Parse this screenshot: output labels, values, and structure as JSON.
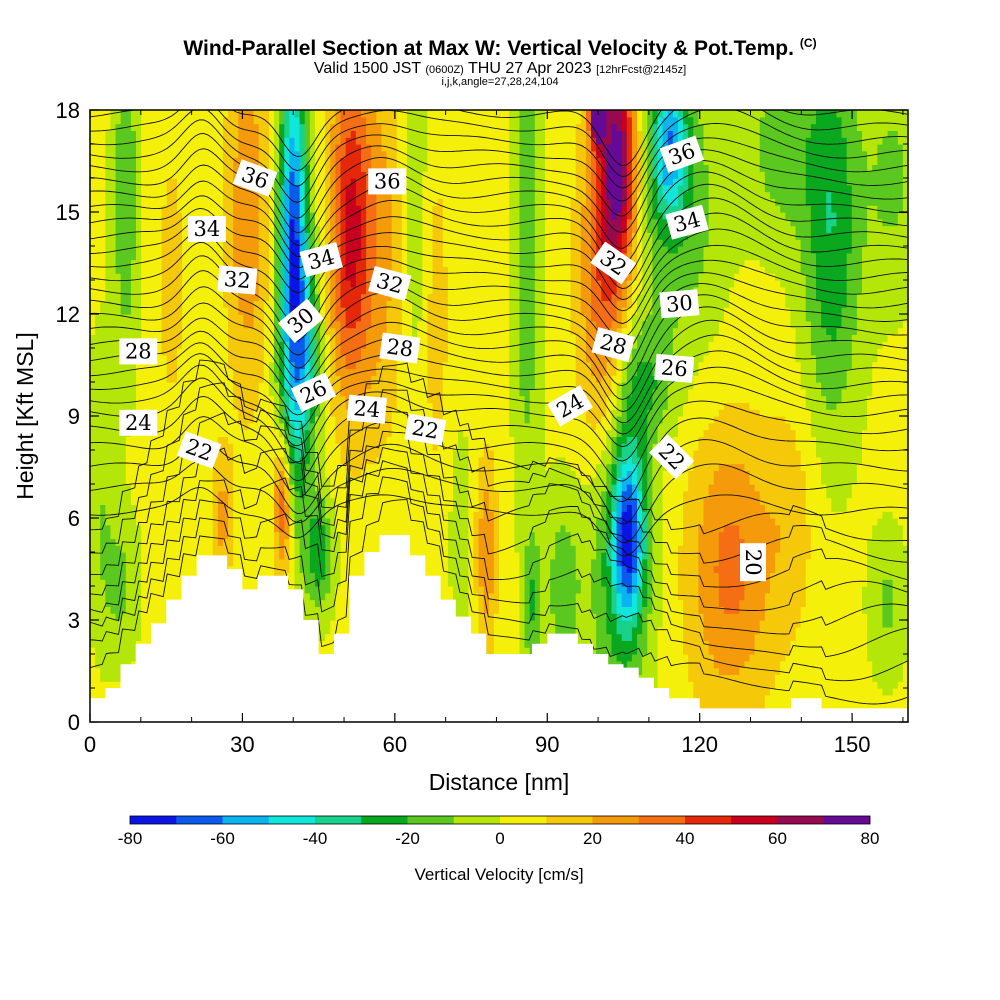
{
  "header": {
    "title": "Wind-Parallel Section at Max W: Vertical Velocity & Pot.Temp.",
    "title_unit": "(C)",
    "subtitle_main": "Valid 1500 JST",
    "subtitle_utc": "(0600Z)",
    "subtitle_date": "THU 27 Apr 2023",
    "subtitle_fcst": "[12hrFcst@2145z]",
    "info": "i,j,k,angle=27,28,24,104"
  },
  "chart_data": {
    "type": "heatmap",
    "xlabel": "Distance [nm]",
    "ylabel": "Height [Kft MSL]",
    "xlim": [
      0,
      161
    ],
    "ylim": [
      0,
      18
    ],
    "xticks": [
      0,
      30,
      60,
      90,
      120,
      150
    ],
    "yticks": [
      0,
      3,
      6,
      9,
      12,
      15,
      18
    ],
    "colorbar": {
      "title": "Vertical Velocity [cm/s]",
      "ticks": [
        -80,
        -60,
        -40,
        -20,
        0,
        20,
        40,
        60,
        80
      ],
      "levels": [
        -80,
        -70,
        -60,
        -50,
        -40,
        -30,
        -20,
        -10,
        0,
        10,
        20,
        30,
        40,
        50,
        60,
        70,
        80
      ],
      "colors": [
        "#0a14e6",
        "#0a5aee",
        "#0ab4f0",
        "#10e6dc",
        "#18d28c",
        "#0aa81e",
        "#5ac81e",
        "#b4e60a",
        "#f5f00a",
        "#f5c80a",
        "#f59a0a",
        "#f56e14",
        "#e6280a",
        "#c8001e",
        "#960a50",
        "#640a96"
      ]
    },
    "terrain": {
      "x": [
        0,
        3,
        6,
        9,
        12,
        15,
        18,
        21,
        24,
        27,
        30,
        33,
        36,
        39,
        42,
        45,
        48,
        51,
        54,
        57,
        60,
        63,
        66,
        69,
        72,
        75,
        78,
        81,
        84,
        87,
        90,
        93,
        96,
        99,
        102,
        105,
        108,
        111,
        114,
        117,
        120,
        123,
        126,
        129,
        132,
        135,
        138,
        141,
        144,
        147,
        150,
        153,
        156,
        159,
        161
      ],
      "height": [
        0.7,
        1.0,
        1.7,
        2.3,
        2.9,
        3.6,
        4.3,
        4.9,
        4.9,
        4.5,
        3.9,
        4.3,
        4.3,
        3.9,
        3.0,
        2.0,
        2.6,
        4.3,
        5.0,
        5.5,
        5.5,
        4.9,
        4.3,
        3.6,
        3.1,
        2.6,
        2.0,
        2.0,
        2.0,
        2.3,
        2.6,
        2.6,
        2.3,
        2.0,
        1.7,
        1.6,
        1.3,
        1.0,
        0.7,
        0.7,
        0.4,
        0.4,
        0.4,
        0.4,
        0.4,
        0.4,
        0.7,
        0.7,
        0.4,
        0.4,
        0.4,
        0.4,
        0.4,
        0.4,
        0.4
      ]
    },
    "velocity_features": [
      {
        "x": 40,
        "y": 14.0,
        "sx": 2.0,
        "sy": 3.8,
        "v": -75
      },
      {
        "x": 43,
        "y": 11.0,
        "sx": 1.8,
        "sy": 1.8,
        "v": -30
      },
      {
        "x": 51,
        "y": 14.5,
        "sx": 2.8,
        "sy": 3.5,
        "v": 45
      },
      {
        "x": 57,
        "y": 14.0,
        "sx": 4.0,
        "sy": 4.0,
        "v": 20
      },
      {
        "x": 31,
        "y": 15.0,
        "sx": 3.0,
        "sy": 4.0,
        "v": 25
      },
      {
        "x": 38,
        "y": 6.5,
        "sx": 1.3,
        "sy": 1.5,
        "v": 45
      },
      {
        "x": 40,
        "y": 8.0,
        "sx": 2.5,
        "sy": 2.2,
        "v": -18
      },
      {
        "x": 45,
        "y": 5.0,
        "sx": 2.0,
        "sy": 1.2,
        "v": -30
      },
      {
        "x": 26,
        "y": 6.0,
        "sx": 1.5,
        "sy": 1.5,
        "v": 20
      },
      {
        "x": 104,
        "y": 16.5,
        "sx": 2.5,
        "sy": 2.2,
        "v": 62
      },
      {
        "x": 101,
        "y": 13.0,
        "sx": 3.5,
        "sy": 4.0,
        "v": 35
      },
      {
        "x": 100,
        "y": 17.8,
        "sx": 1.0,
        "sy": 0.5,
        "v": 80
      },
      {
        "x": 114,
        "y": 17.0,
        "sx": 2.5,
        "sy": 1.5,
        "v": -50
      },
      {
        "x": 116,
        "y": 15.0,
        "sx": 6.0,
        "sy": 3.0,
        "v": -20
      },
      {
        "x": 106,
        "y": 5.5,
        "sx": 2.2,
        "sy": 1.8,
        "v": -60
      },
      {
        "x": 104,
        "y": 5.0,
        "sx": 4.5,
        "sy": 3.5,
        "v": -28
      },
      {
        "x": 109,
        "y": 10.0,
        "sx": 4.0,
        "sy": 1.3,
        "v": -20
      },
      {
        "x": 86,
        "y": 14.0,
        "sx": 1.8,
        "sy": 5.0,
        "v": -22
      },
      {
        "x": 93,
        "y": 4.0,
        "sx": 2.5,
        "sy": 2.0,
        "v": -18
      },
      {
        "x": 87,
        "y": 3.5,
        "sx": 1.2,
        "sy": 1.5,
        "v": -22
      },
      {
        "x": 126,
        "y": 4.5,
        "sx": 6.0,
        "sy": 3.0,
        "v": 30
      },
      {
        "x": 138,
        "y": 6.0,
        "sx": 3.5,
        "sy": 2.5,
        "v": 12
      },
      {
        "x": 146,
        "y": 14.5,
        "sx": 4.0,
        "sy": 4.0,
        "v": -32
      },
      {
        "x": 136,
        "y": 17.0,
        "sx": 5.0,
        "sy": 2.0,
        "v": -18
      },
      {
        "x": 158,
        "y": 16.0,
        "sx": 4.0,
        "sy": 2.5,
        "v": -15
      },
      {
        "x": 7,
        "y": 15.5,
        "sx": 1.8,
        "sy": 3.5,
        "v": -22
      },
      {
        "x": 2,
        "y": 7.0,
        "sx": 2.0,
        "sy": 3.0,
        "v": -12
      },
      {
        "x": 6,
        "y": 4.0,
        "sx": 2.5,
        "sy": 1.5,
        "v": -15
      },
      {
        "x": 16,
        "y": 13.0,
        "sx": 2.0,
        "sy": 3.0,
        "v": 12
      },
      {
        "x": 68,
        "y": 12.0,
        "sx": 2.0,
        "sy": 4.0,
        "v": 12
      },
      {
        "x": 78,
        "y": 5.0,
        "sx": 1.5,
        "sy": 2.0,
        "v": 25
      },
      {
        "x": 73,
        "y": 5.5,
        "sx": 1.5,
        "sy": 2.0,
        "v": -12
      },
      {
        "x": 64,
        "y": 15.0,
        "sx": 2.0,
        "sy": 4.0,
        "v": -14
      },
      {
        "x": 157,
        "y": 3.5,
        "sx": 2.5,
        "sy": 1.5,
        "v": -15
      }
    ],
    "contour_labels": [
      {
        "text": "36",
        "x": 32.5,
        "y": 16.0,
        "angle": -20
      },
      {
        "text": "36",
        "x": 58.5,
        "y": 15.9,
        "angle": 0
      },
      {
        "text": "36",
        "x": 116.5,
        "y": 16.7,
        "angle": 20
      },
      {
        "text": "34",
        "x": 23,
        "y": 14.5,
        "angle": 0
      },
      {
        "text": "34",
        "x": 45.5,
        "y": 13.6,
        "angle": 15
      },
      {
        "text": "34",
        "x": 117.5,
        "y": 14.7,
        "angle": 15
      },
      {
        "text": "32",
        "x": 29,
        "y": 13.0,
        "angle": -5
      },
      {
        "text": "32",
        "x": 59,
        "y": 12.9,
        "angle": -15
      },
      {
        "text": "32",
        "x": 103,
        "y": 13.5,
        "angle": -35
      },
      {
        "text": "30",
        "x": 41.5,
        "y": 11.8,
        "angle": 40
      },
      {
        "text": "30",
        "x": 116,
        "y": 12.3,
        "angle": 5
      },
      {
        "text": "28",
        "x": 9.5,
        "y": 10.9,
        "angle": 0
      },
      {
        "text": "28",
        "x": 61,
        "y": 11.0,
        "angle": -8
      },
      {
        "text": "28",
        "x": 103,
        "y": 11.1,
        "angle": -15
      },
      {
        "text": "26",
        "x": 44,
        "y": 9.7,
        "angle": 25
      },
      {
        "text": "26",
        "x": 115,
        "y": 10.4,
        "angle": -5
      },
      {
        "text": "24",
        "x": 9.5,
        "y": 8.8,
        "angle": 0
      },
      {
        "text": "24",
        "x": 54.5,
        "y": 9.2,
        "angle": -5
      },
      {
        "text": "24",
        "x": 94.5,
        "y": 9.3,
        "angle": 30
      },
      {
        "text": "22",
        "x": 21.5,
        "y": 8.0,
        "angle": -20
      },
      {
        "text": "22",
        "x": 66,
        "y": 8.6,
        "angle": -10
      },
      {
        "text": "22",
        "x": 114.5,
        "y": 7.8,
        "angle": -45
      },
      {
        "text": "20",
        "x": 130.5,
        "y": 4.7,
        "angle": -90
      }
    ],
    "isentropes": [
      0.6,
      1.3,
      2.0,
      2.7,
      3.4,
      4.1,
      4.8,
      5.5,
      6.2,
      6.9,
      7.5,
      8.1,
      8.6,
      9.1,
      9.5,
      9.9,
      10.3,
      10.7,
      11.1,
      11.5,
      11.9,
      12.3,
      12.7,
      13.1,
      13.5,
      13.9,
      14.3,
      14.7,
      15.1,
      15.5,
      15.9,
      16.3,
      16.7,
      17.1,
      17.5,
      17.9
    ]
  }
}
